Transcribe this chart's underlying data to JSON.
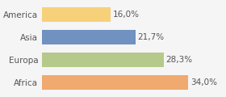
{
  "categories": [
    "America",
    "Asia",
    "Europa",
    "Africa"
  ],
  "values": [
    16.0,
    21.7,
    28.3,
    34.0
  ],
  "labels": [
    "16,0%",
    "21,7%",
    "28,3%",
    "34,0%"
  ],
  "bar_colors": [
    "#f7d07a",
    "#7191c0",
    "#b5c98a",
    "#f0a96e"
  ],
  "background_color": "#f5f5f5",
  "xlim": [
    0,
    42
  ],
  "label_fontsize": 7.5,
  "tick_fontsize": 7.5
}
